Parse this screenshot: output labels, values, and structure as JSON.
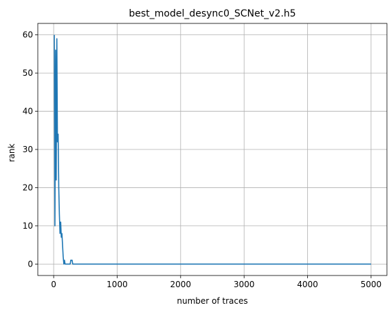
{
  "chart_data": {
    "type": "line",
    "title": "best_model_desync0_SCNet_v2.h5",
    "xlabel": "number of traces",
    "ylabel": "rank",
    "xlim": [
      -250,
      5250
    ],
    "ylim": [
      -3,
      63
    ],
    "xticks": [
      0,
      1000,
      2000,
      3000,
      4000,
      5000
    ],
    "xtick_labels": [
      "0",
      "1000",
      "2000",
      "3000",
      "4000",
      "5000"
    ],
    "yticks": [
      0,
      10,
      20,
      30,
      40,
      50,
      60
    ],
    "ytick_labels": [
      "0",
      "10",
      "20",
      "30",
      "40",
      "50",
      "60"
    ],
    "grid": true,
    "line_color": "#1f77b4",
    "series": [
      {
        "x": [
          10,
          20,
          30,
          40,
          50,
          60,
          70,
          80,
          90,
          100,
          110,
          120,
          130,
          140,
          150,
          160,
          170,
          180,
          200,
          220,
          240,
          260,
          270,
          280,
          290,
          300,
          320,
          5000
        ],
        "y": [
          60,
          10,
          56,
          22,
          59,
          32,
          34,
          20,
          13,
          8,
          11,
          7,
          8,
          5,
          2,
          0,
          1,
          0,
          0,
          0,
          0,
          0,
          1,
          1,
          1,
          0,
          0,
          0
        ]
      }
    ]
  }
}
